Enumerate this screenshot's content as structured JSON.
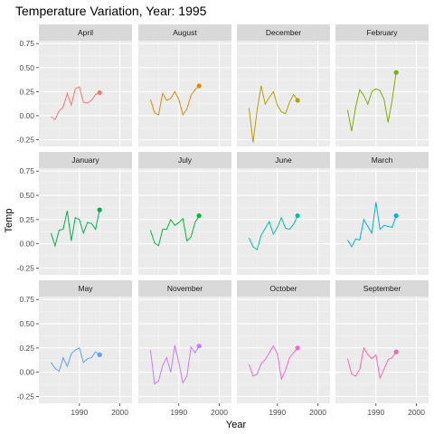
{
  "chart_data": {
    "type": "line",
    "title": "Temperature Variation, Year: 1995",
    "xlabel": "Year",
    "ylabel": "Temp",
    "xlim": [
      1980,
      2003
    ],
    "ylim": [
      -0.32,
      0.78
    ],
    "x_ticks": [
      1990,
      2000
    ],
    "x_tick_labels": [
      "1990",
      "2000"
    ],
    "y_ticks": [
      -0.25,
      0.0,
      0.25,
      0.5,
      0.75
    ],
    "y_tick_labels": [
      "-0.25",
      "0.00",
      "0.25",
      "0.50",
      "0.75"
    ],
    "highlight_year": 1995,
    "x": [
      1983,
      1984,
      1985,
      1986,
      1987,
      1988,
      1989,
      1990,
      1991,
      1992,
      1993,
      1994,
      1995
    ],
    "series": [
      {
        "name": "April",
        "color": "#F8766D",
        "values": [
          -0.01,
          -0.04,
          0.05,
          0.09,
          0.23,
          0.11,
          0.28,
          0.3,
          0.14,
          0.13,
          0.16,
          0.22,
          0.24
        ]
      },
      {
        "name": "August",
        "color": "#DE8C00",
        "values": [
          0.17,
          0.03,
          0.01,
          0.23,
          0.16,
          0.18,
          0.25,
          0.17,
          0.01,
          0.07,
          0.21,
          0.27,
          0.31
        ]
      },
      {
        "name": "December",
        "color": "#B79F00",
        "values": [
          0.08,
          -0.28,
          0.06,
          0.31,
          0.12,
          0.19,
          0.25,
          0.11,
          0.04,
          0.02,
          0.14,
          0.22,
          0.16
        ]
      },
      {
        "name": "February",
        "color": "#7CAE00",
        "values": [
          0.06,
          -0.16,
          0.09,
          0.27,
          0.21,
          0.12,
          0.25,
          0.28,
          0.26,
          0.17,
          -0.07,
          0.16,
          0.45
        ]
      },
      {
        "name": "January",
        "color": "#00B050",
        "values": [
          0.11,
          -0.02,
          0.14,
          0.15,
          0.34,
          0.03,
          0.27,
          0.25,
          0.11,
          0.22,
          0.21,
          0.15,
          0.35
        ]
      },
      {
        "name": "July",
        "color": "#00BA38",
        "values": [
          0.14,
          0.01,
          -0.02,
          0.15,
          0.15,
          0.25,
          0.19,
          0.22,
          0.26,
          0.03,
          0.07,
          0.22,
          0.29
        ]
      },
      {
        "name": "June",
        "color": "#00BFA4",
        "values": [
          0.06,
          -0.03,
          -0.06,
          0.09,
          0.16,
          0.23,
          0.1,
          0.17,
          0.27,
          0.16,
          0.15,
          0.2,
          0.29
        ]
      },
      {
        "name": "March",
        "color": "#00B0DD",
        "values": [
          0.04,
          -0.03,
          0.05,
          0.04,
          0.25,
          0.18,
          0.11,
          0.43,
          0.15,
          0.19,
          0.18,
          0.17,
          0.29
        ]
      },
      {
        "name": "May",
        "color": "#619CFF",
        "values": [
          0.1,
          0.04,
          0.01,
          0.15,
          0.06,
          0.19,
          0.23,
          0.25,
          0.1,
          0.14,
          0.15,
          0.21,
          0.18
        ]
      },
      {
        "name": "November",
        "color": "#C77CFF",
        "values": [
          0.23,
          -0.12,
          -0.09,
          0.07,
          0.15,
          0.0,
          0.28,
          0.1,
          -0.11,
          -0.04,
          0.26,
          0.2,
          0.27
        ]
      },
      {
        "name": "October",
        "color": "#F564E3",
        "values": [
          0.08,
          -0.04,
          -0.02,
          0.09,
          0.13,
          0.2,
          0.27,
          0.19,
          -0.07,
          0.02,
          0.15,
          0.2,
          0.25
        ]
      },
      {
        "name": "September",
        "color": "#FF64B0",
        "values": [
          0.14,
          -0.02,
          -0.04,
          0.03,
          0.25,
          0.18,
          0.14,
          0.18,
          -0.06,
          0.03,
          0.13,
          0.15,
          0.21
        ]
      }
    ]
  }
}
